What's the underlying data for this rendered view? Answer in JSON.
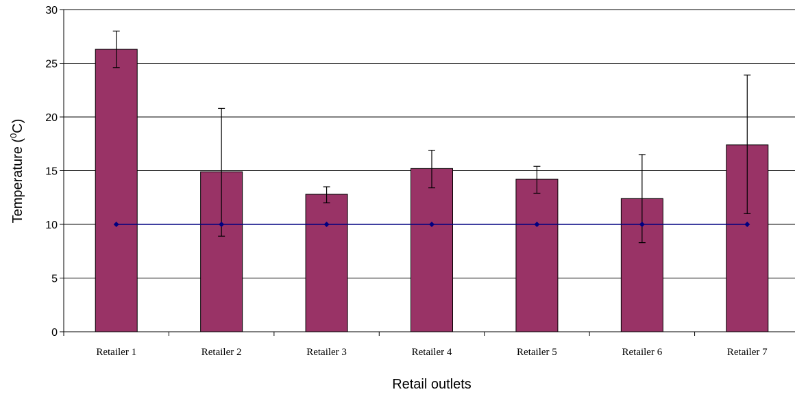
{
  "chart_data": {
    "type": "bar",
    "categories": [
      "Retailer 1",
      "Retailer 2",
      "Retailer 3",
      "Retailer 4",
      "Retailer 5",
      "Retailer 6",
      "Retailer 7"
    ],
    "series": [
      {
        "values": [
          26.3,
          14.9,
          12.8,
          15.2,
          14.2,
          12.4,
          17.4
        ],
        "error_low": [
          24.6,
          8.9,
          12.0,
          13.4,
          12.9,
          8.3,
          11.0
        ],
        "error_high": [
          28.0,
          20.8,
          13.5,
          16.9,
          15.4,
          16.5,
          23.9
        ],
        "color": "#993366"
      },
      {
        "type": "line",
        "values": [
          10,
          10,
          10,
          10,
          10,
          10,
          10
        ],
        "color": "#000080"
      }
    ],
    "xlabel": "Retail outlets",
    "ylabel_main": "Temperature (",
    "ylabel_sup": "0",
    "ylabel_tail": "C)",
    "ylim": [
      0,
      30
    ],
    "yticks": [
      "0",
      "5",
      "10",
      "15",
      "20",
      "25",
      "30"
    ],
    "grid": true
  }
}
